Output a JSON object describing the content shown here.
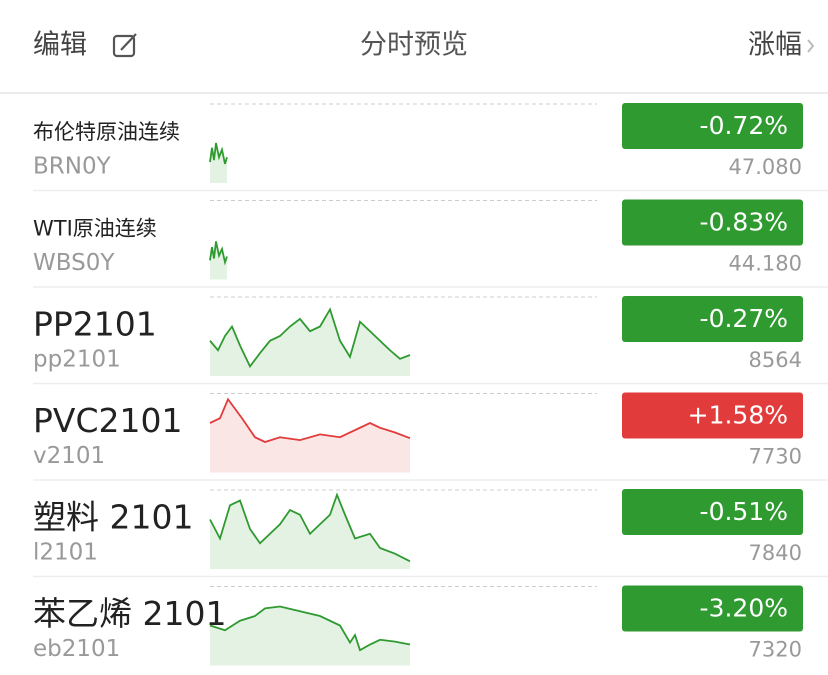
{
  "header": {
    "left": "编辑",
    "center": "分时预览",
    "right": "涨幅"
  },
  "rows": [
    {
      "name": "布伦特原油连续",
      "code": "BRN0Y",
      "change": "-0.72%",
      "price": "47.080",
      "color": "#2f9a30"
    },
    {
      "name": "WTI原油连续",
      "code": "WBS0Y",
      "change": "-0.83%",
      "price": "44.180",
      "color": "#2f9a30"
    },
    {
      "name": "PP2101",
      "code": "pp2101",
      "change": "-0.27%",
      "price": "8564",
      "color": "#2f9a30"
    },
    {
      "name": "PVC2101",
      "code": "v2101",
      "change": "+1.58%",
      "price": "7730",
      "color": "#e23b3b"
    },
    {
      "name": "塑料 2101",
      "code": "l2101",
      "change": "-0.51%",
      "price": "7840",
      "color": "#2f9a30"
    },
    {
      "name": "苯乙烯 2101",
      "code": "eb2101",
      "change": "-3.20%",
      "price": "7320",
      "color": "#2f9a30"
    }
  ]
}
